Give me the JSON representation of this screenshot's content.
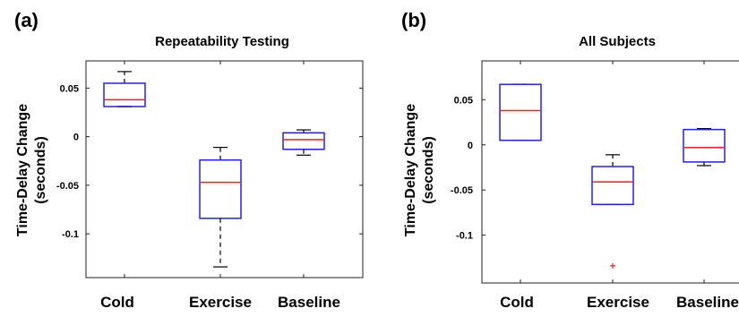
{
  "chart_data": [
    {
      "type": "boxplot",
      "panel_label": "(a)",
      "title": "Repeatability Testing",
      "ylabel": "Time-Delay Change\n(seconds)",
      "categories": [
        "Cold",
        "Exercise",
        "Baseline"
      ],
      "yticks": [
        0.05,
        0,
        -0.05,
        -0.1
      ],
      "ytick_labels": [
        "0.05",
        "0",
        "-0.05",
        "-0.1"
      ],
      "ylim": [
        -0.145,
        0.078
      ],
      "boxes": [
        {
          "category": "Cold",
          "whisker_low": 0.031,
          "q1": 0.031,
          "median": 0.038,
          "q3": 0.055,
          "whisker_high": 0.067,
          "outliers": []
        },
        {
          "category": "Exercise",
          "whisker_low": -0.134,
          "q1": -0.084,
          "median": -0.047,
          "q3": -0.024,
          "whisker_high": -0.011,
          "outliers": []
        },
        {
          "category": "Baseline",
          "whisker_low": -0.019,
          "q1": -0.013,
          "median": -0.003,
          "q3": 0.004,
          "whisker_high": 0.007,
          "outliers": []
        }
      ],
      "colors": {
        "box": "#2222ee",
        "median": "#ee2222",
        "whisker": "#000000",
        "outlier": "#ee2222"
      },
      "grid": false
    },
    {
      "type": "boxplot",
      "panel_label": "(b)",
      "title": "All Subjects",
      "ylabel": "Time-Delay Change\n(seconds)",
      "categories": [
        "Cold",
        "Exercise",
        "Baseline"
      ],
      "yticks": [
        0.05,
        0,
        -0.05,
        -0.1
      ],
      "ytick_labels": [
        "0.05",
        "0",
        "-0.05",
        "-0.1"
      ],
      "ylim": [
        -0.153,
        0.093
      ],
      "boxes": [
        {
          "category": "Cold",
          "whisker_low": 0.005,
          "q1": 0.005,
          "median": 0.038,
          "q3": 0.067,
          "whisker_high": 0.067,
          "outliers": []
        },
        {
          "category": "Exercise",
          "whisker_low": -0.066,
          "q1": -0.066,
          "median": -0.041,
          "q3": -0.024,
          "whisker_high": -0.011,
          "outliers": [
            -0.134
          ]
        },
        {
          "category": "Baseline",
          "whisker_low": -0.023,
          "q1": -0.019,
          "median": -0.003,
          "q3": 0.017,
          "whisker_high": 0.018,
          "outliers": []
        }
      ],
      "colors": {
        "box": "#2222ee",
        "median": "#ee2222",
        "whisker": "#000000",
        "outlier": "#ee2222"
      },
      "grid": false
    }
  ]
}
